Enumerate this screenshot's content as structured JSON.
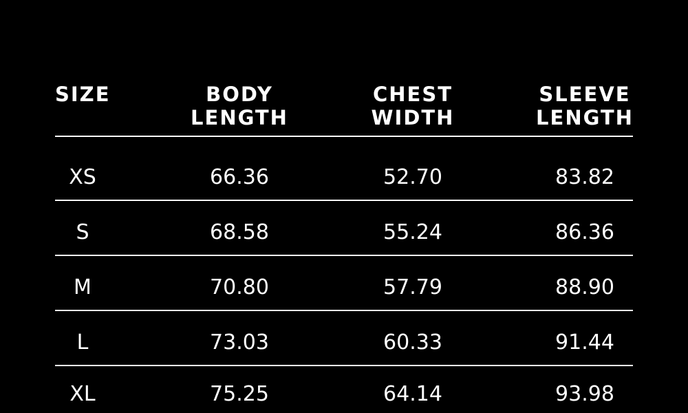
{
  "page": {
    "background_color": "#000000",
    "text_color": "#ffffff",
    "divider_color": "#ffffff"
  },
  "chart_data": {
    "type": "table",
    "title": "",
    "columns": [
      "SIZE",
      "BODY LENGTH",
      "CHEST WIDTH",
      "SLEEVE LENGTH"
    ],
    "rows": [
      [
        "XS",
        "66.36",
        "52.70",
        "83.82"
      ],
      [
        "S",
        "68.58",
        "55.24",
        "86.36"
      ],
      [
        "M",
        "70.80",
        "57.79",
        "88.90"
      ],
      [
        "L",
        "73.03",
        "60.33",
        "91.44"
      ],
      [
        "XL",
        "75.25",
        "64.14",
        "93.98"
      ]
    ]
  },
  "header": {
    "size": {
      "line1": "SIZE",
      "line2": ""
    },
    "body_length": {
      "line1": "BODY",
      "line2": "LENGTH"
    },
    "chest_width": {
      "line1": "CHEST",
      "line2": "WIDTH"
    },
    "sleeve_length": {
      "line1": "SLEEVE",
      "line2": "LENGTH"
    }
  }
}
